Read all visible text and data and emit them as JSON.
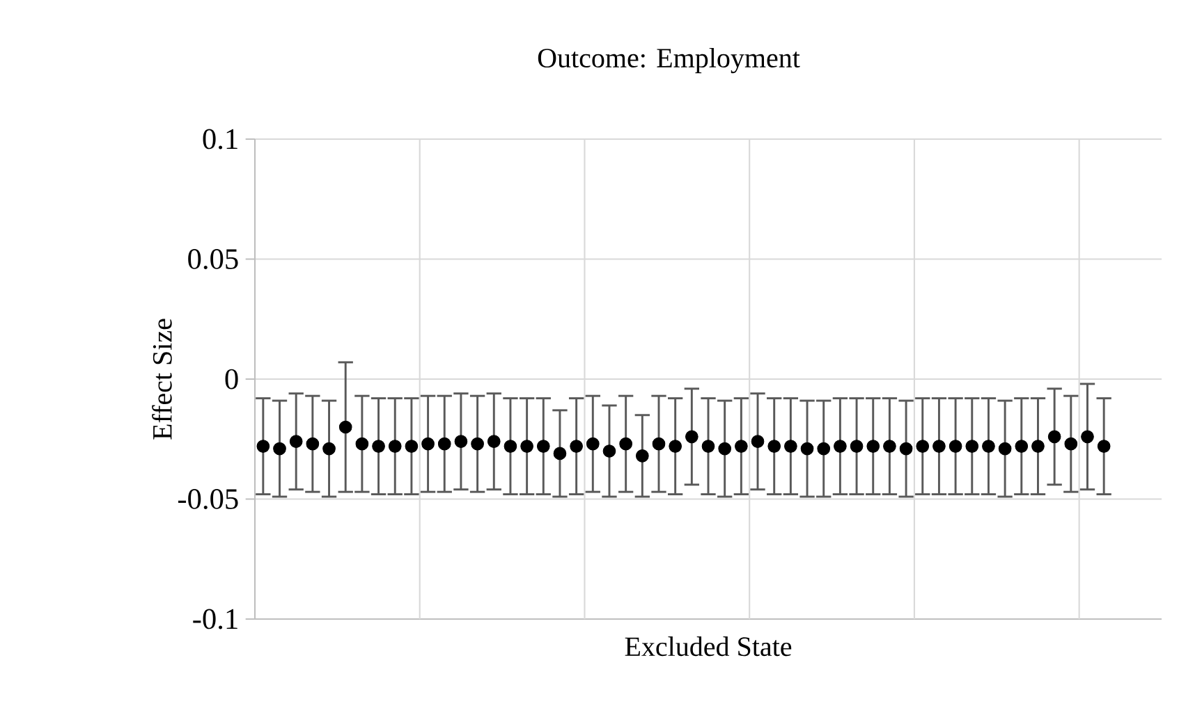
{
  "chart_data": {
    "type": "scatter",
    "title": "Outcome: Employment",
    "xlabel": "Excluded State",
    "ylabel": "Effect Size",
    "categories": [
      null,
      null,
      null,
      null,
      null,
      null,
      null,
      null,
      null,
      null,
      null,
      null,
      null,
      null,
      null,
      null,
      null,
      null,
      null,
      null,
      null,
      null,
      null,
      null,
      null,
      null,
      null,
      null,
      null,
      null,
      null,
      null,
      null,
      null,
      null,
      null,
      null,
      null,
      null,
      null,
      null,
      null,
      null,
      null,
      null,
      null,
      null,
      null,
      null,
      null,
      null,
      null,
      null,
      null,
      null
    ],
    "values": [
      -0.028,
      -0.029,
      -0.026,
      -0.027,
      -0.029,
      -0.02,
      -0.027,
      -0.028,
      -0.028,
      -0.028,
      -0.027,
      -0.027,
      -0.026,
      -0.027,
      -0.026,
      -0.028,
      -0.028,
      -0.028,
      -0.031,
      -0.028,
      -0.027,
      -0.03,
      -0.027,
      -0.032,
      -0.027,
      -0.028,
      -0.024,
      -0.028,
      -0.029,
      -0.028,
      -0.026,
      -0.028,
      -0.028,
      -0.029,
      -0.029,
      -0.028,
      -0.028,
      -0.028,
      -0.028,
      -0.029,
      -0.028,
      -0.028,
      -0.028,
      -0.028,
      -0.028,
      -0.029,
      -0.028,
      -0.028,
      -0.024,
      -0.027,
      -0.024,
      -0.028,
      null,
      null,
      null
    ],
    "errors": [
      0.02,
      0.02,
      0.02,
      0.02,
      0.02,
      0.027,
      0.02,
      0.02,
      0.02,
      0.02,
      0.02,
      0.02,
      0.02,
      0.02,
      0.02,
      0.02,
      0.02,
      0.02,
      0.018,
      0.02,
      0.02,
      0.019,
      0.02,
      0.017,
      0.02,
      0.02,
      0.02,
      0.02,
      0.02,
      0.02,
      0.02,
      0.02,
      0.02,
      0.02,
      0.02,
      0.02,
      0.02,
      0.02,
      0.02,
      0.02,
      0.02,
      0.02,
      0.02,
      0.02,
      0.02,
      0.02,
      0.02,
      0.02,
      0.02,
      0.02,
      0.022,
      0.02,
      null,
      null,
      null
    ],
    "color": "#000000",
    "marker": "circle",
    "grid": true,
    "tick_labels": "y",
    "ylim": [
      -0.1,
      0.1
    ],
    "yticks": [
      {
        "value": -0.1,
        "label": "-0.1"
      },
      {
        "value": -0.05,
        "label": "-0.05"
      },
      {
        "value": 0,
        "label": "0"
      },
      {
        "value": 0.05,
        "label": "0.05"
      },
      {
        "value": 0.1,
        "label": "0.1"
      }
    ]
  }
}
